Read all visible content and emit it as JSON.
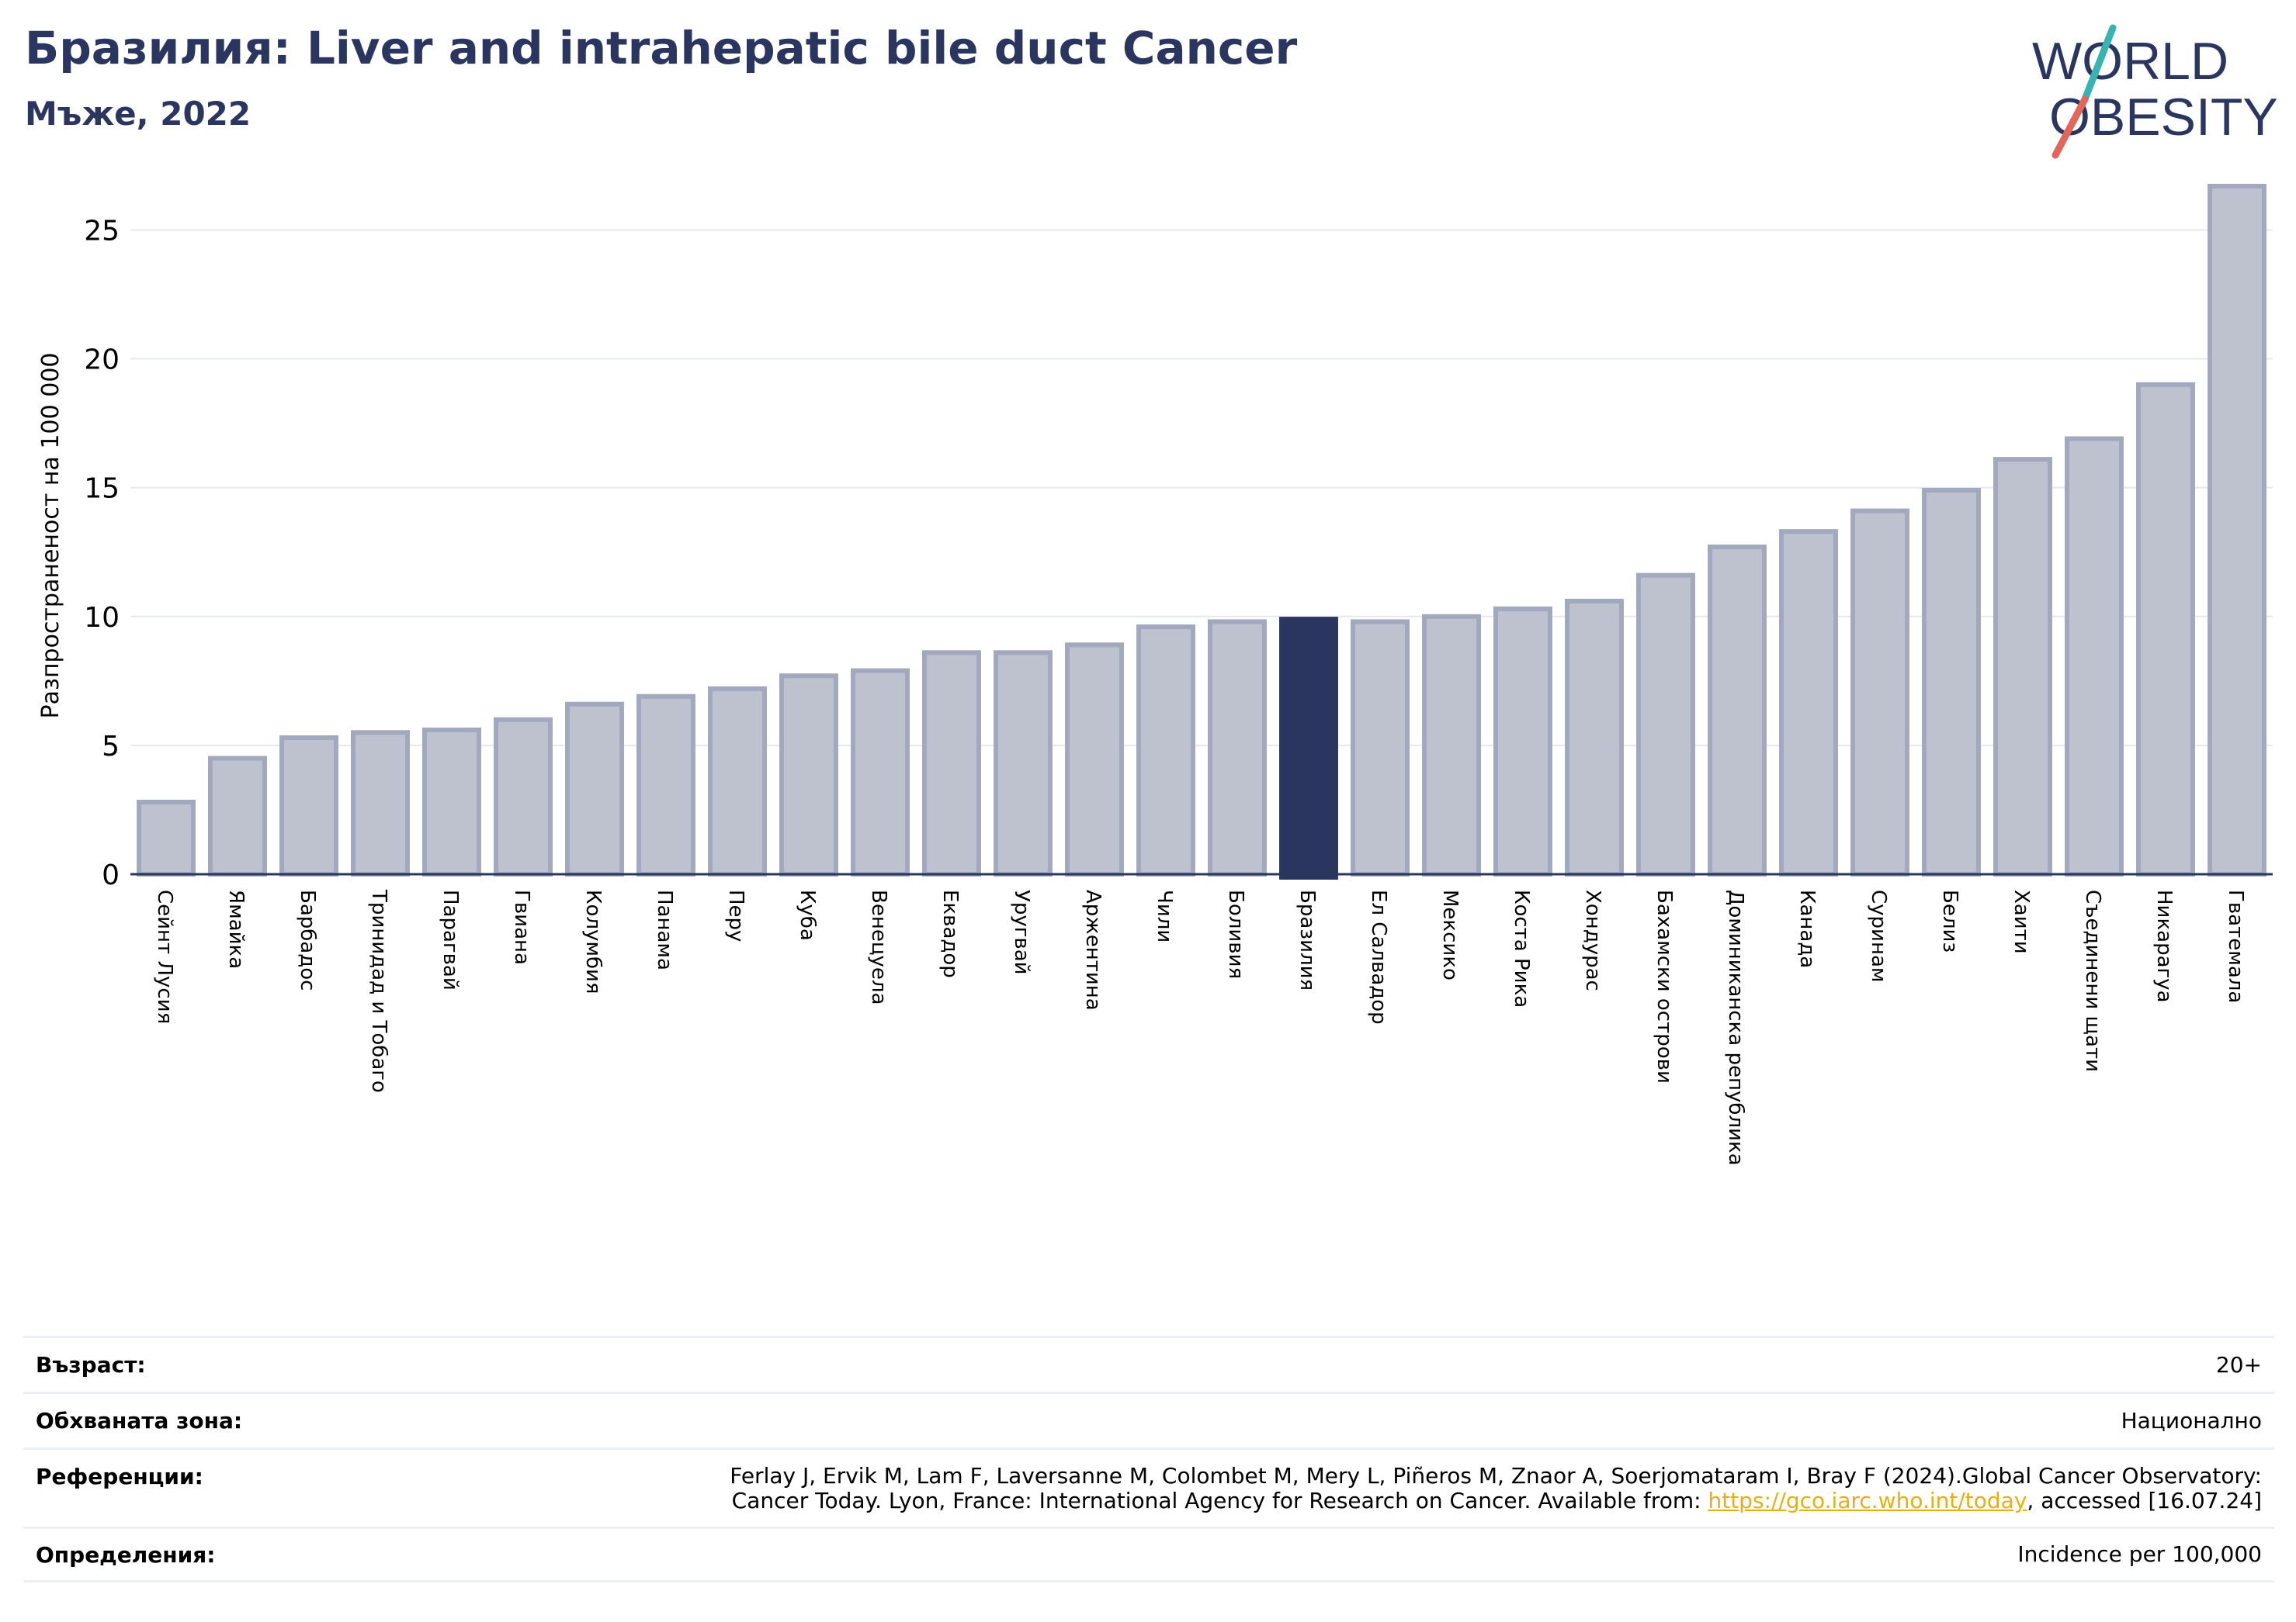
{
  "header": {
    "title": "Бразилия: Liver and intrahepatic bile duct Cancer",
    "subtitle": "Мъже, 2022"
  },
  "logo": {
    "line1": "WORLD",
    "line2": "OBESITY"
  },
  "colors": {
    "title": "#2b3660",
    "bar_fill": "#bec2cf",
    "bar_stroke": "#a2a8bd",
    "highlight": "#2b3660",
    "logo_text": "#2b3660",
    "logo_slash_top": "#39b2b4",
    "logo_slash_bottom": "#e0675a",
    "link": "#e8b00f"
  },
  "chart_data": {
    "type": "bar",
    "title": "Бразилия: Liver and intrahepatic bile duct Cancer",
    "subtitle": "Мъже, 2022",
    "ylabel": "Разпространеност  на 100 000",
    "xlabel": "",
    "ylim": [
      0,
      27
    ],
    "yticks": [
      0,
      5,
      10,
      15,
      20,
      25
    ],
    "grid": true,
    "highlight": "Бразилия",
    "categories": [
      "Сейнт Лусия",
      "Ямайка",
      "Барбадос",
      "Тринидад и Тобаго",
      "Парагвай",
      "Гвиана",
      "Колумбия",
      "Панама",
      "Перу",
      "Куба",
      "Венецуела",
      "Еквадор",
      "Уругвай",
      "Аржентина",
      "Чили",
      "Боливия",
      "Бразилия",
      "Ел Салвадор",
      "Мексико",
      "Коста Рика",
      "Хондурас",
      "Бахамски острови",
      "Доминиканска република",
      "Канада",
      "Суринам",
      "Белиз",
      "Хаити",
      "Съединени щати",
      "Никарагуа",
      "Гватемала"
    ],
    "values": [
      2.8,
      4.5,
      5.3,
      5.5,
      5.6,
      6.0,
      6.6,
      6.9,
      7.2,
      7.7,
      7.9,
      8.6,
      8.6,
      8.9,
      9.6,
      9.8,
      9.9,
      9.8,
      10.0,
      10.3,
      10.6,
      11.6,
      12.7,
      13.3,
      14.1,
      14.9,
      16.1,
      16.9,
      19.0,
      26.7
    ]
  },
  "meta": {
    "age_label": "Възраст:",
    "age_value": "20+",
    "area_label": "Обхваната зона:",
    "area_value": "Национално",
    "refs_label": "Референции:",
    "refs_line1": "Ferlay J, Ervik M, Lam F, Laversanne M, Colombet M, Mery L, Piñeros M, Znaor A, Soerjomataram I, Bray F (2024).Global Cancer Observatory:",
    "refs_line2_pre": "Cancer Today. Lyon, France: International Agency for Research on Cancer. Available from: ",
    "refs_link": "https://gco.iarc.who.int/today",
    "refs_line2_post": ", accessed [16.07.24]",
    "defs_label": "Определения:",
    "defs_value": "Incidence per 100,000"
  }
}
